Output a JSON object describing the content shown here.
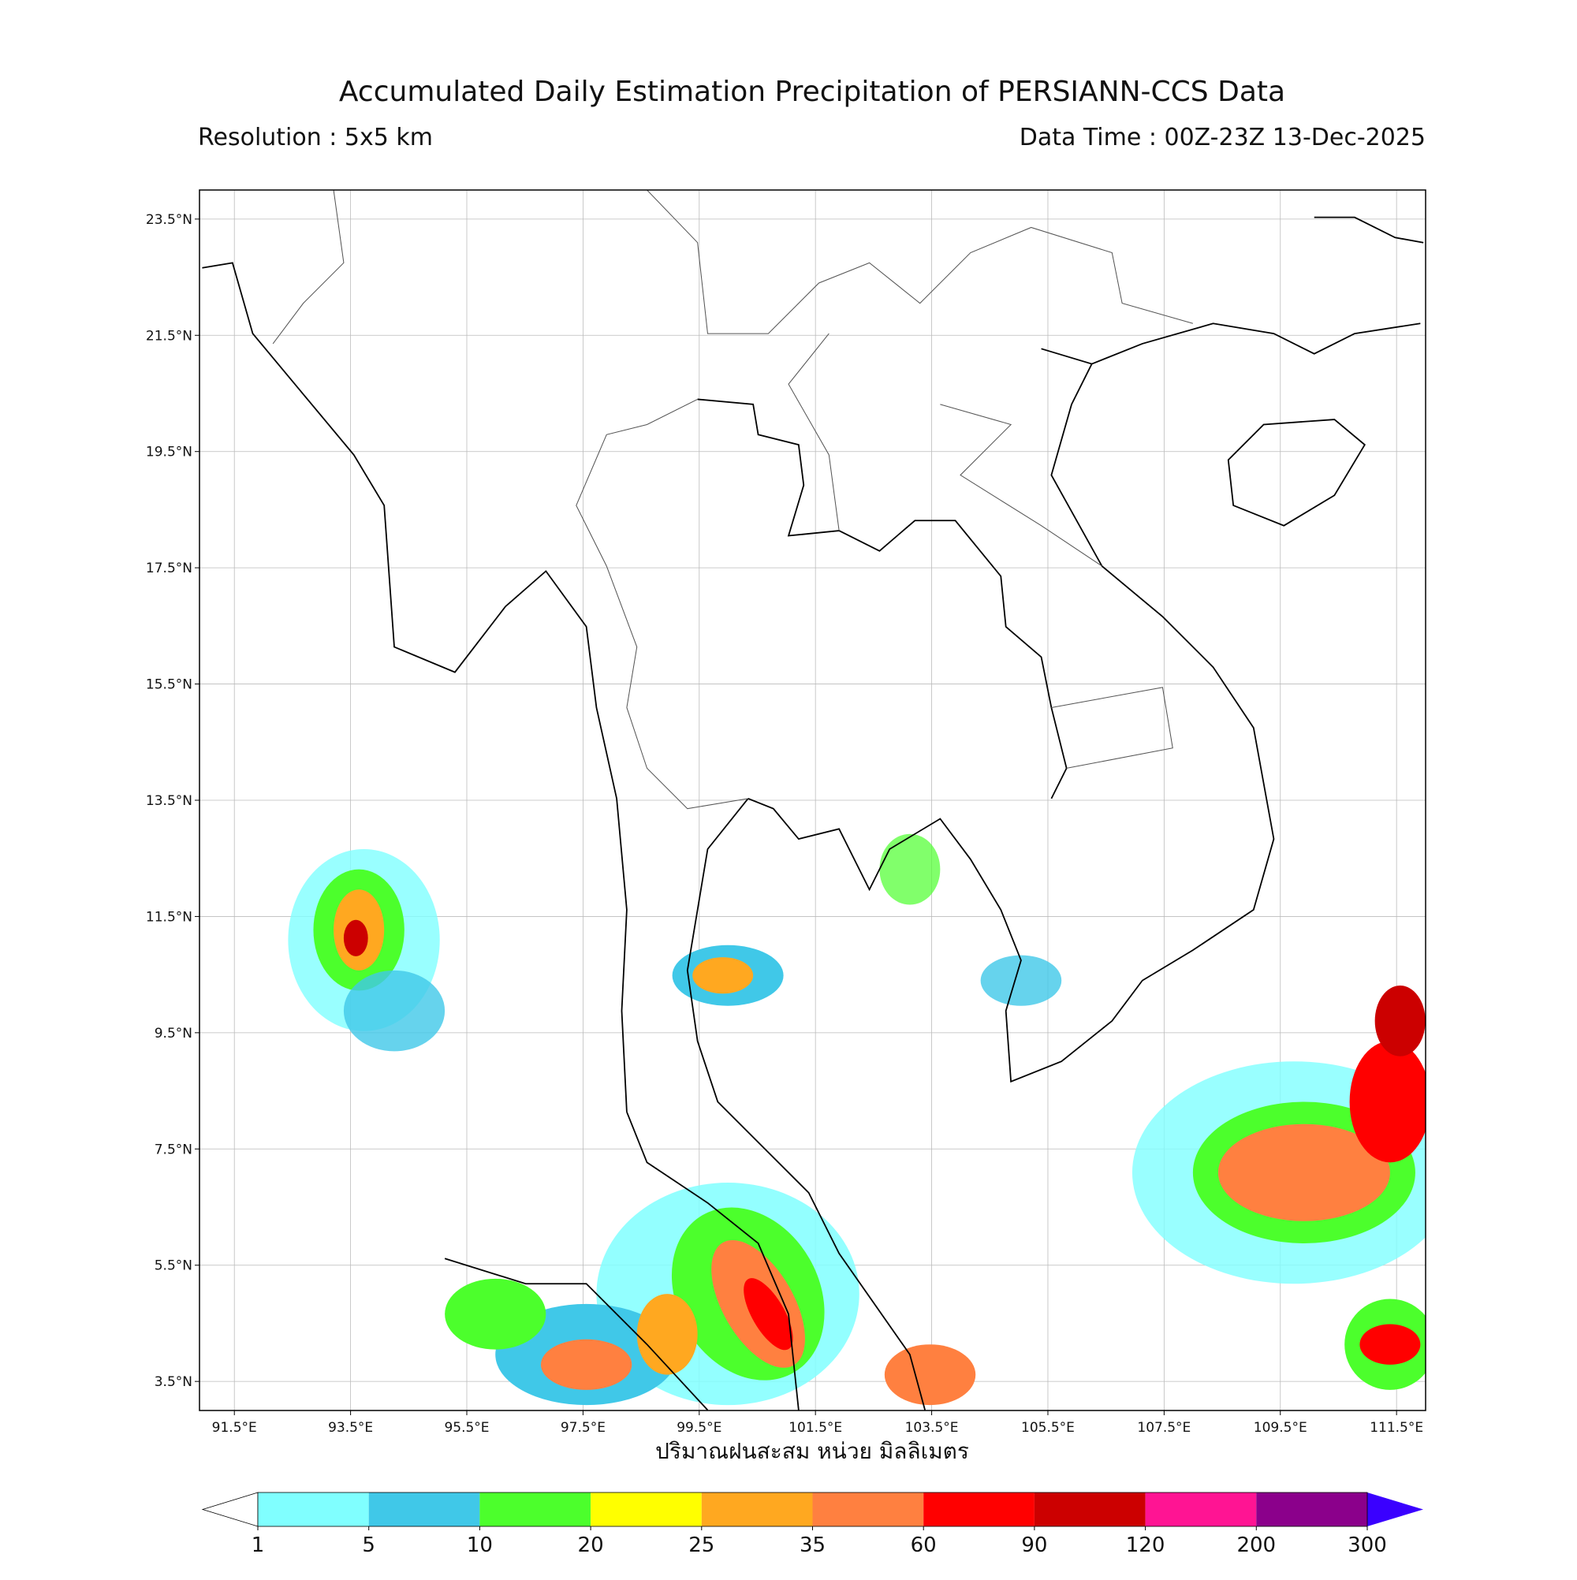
{
  "title": "Accumulated Daily Estimation Precipitation of PERSIANN-CCS Data",
  "resolution": "Resolution : 5x5 km",
  "data_time": "Data Time : 00Z-23Z 13-Dec-2025",
  "map": {
    "xlim": [
      90.9,
      112.0
    ],
    "ylim": [
      3.0,
      24.0
    ],
    "grid": true,
    "xticks": [
      {
        "value": 91.5,
        "label": "91.5°E"
      },
      {
        "value": 93.5,
        "label": "93.5°E"
      },
      {
        "value": 95.5,
        "label": "95.5°E"
      },
      {
        "value": 97.5,
        "label": "97.5°E"
      },
      {
        "value": 99.5,
        "label": "99.5°E"
      },
      {
        "value": 101.5,
        "label": "101.5°E"
      },
      {
        "value": 103.5,
        "label": "103.5°E"
      },
      {
        "value": 105.5,
        "label": "105.5°E"
      },
      {
        "value": 107.5,
        "label": "107.5°E"
      },
      {
        "value": 109.5,
        "label": "109.5°E"
      },
      {
        "value": 111.5,
        "label": "111.5°E"
      }
    ],
    "yticks": [
      {
        "value": 23.5,
        "label": "23.5°N"
      },
      {
        "value": 21.5,
        "label": "21.5°N"
      },
      {
        "value": 19.5,
        "label": "19.5°N"
      },
      {
        "value": 17.5,
        "label": "17.5°N"
      },
      {
        "value": 15.5,
        "label": "15.5°N"
      },
      {
        "value": 13.5,
        "label": "13.5°N"
      },
      {
        "value": 11.5,
        "label": "11.5°N"
      },
      {
        "value": 9.5,
        "label": "9.5°N"
      },
      {
        "value": 7.5,
        "label": "7.5°N"
      },
      {
        "value": 5.5,
        "label": "5.5°N"
      },
      {
        "value": 3.5,
        "label": "3.5°N"
      }
    ]
  },
  "colorbar": {
    "label": "ปริมาณฝนสะสม หน่วย มิลลิเมตร",
    "levels": [
      1,
      5,
      10,
      20,
      25,
      35,
      60,
      90,
      120,
      200,
      300
    ],
    "colors": [
      "#80ffff",
      "#40c8e8",
      "#4cff2c",
      "#ffff00",
      "#ffa820",
      "#ff8040",
      "#ff0000",
      "#cc0000",
      "#ff1493",
      "#8b008b"
    ],
    "under_color": "#ffffff",
    "over_color": "#3a00ff"
  }
}
